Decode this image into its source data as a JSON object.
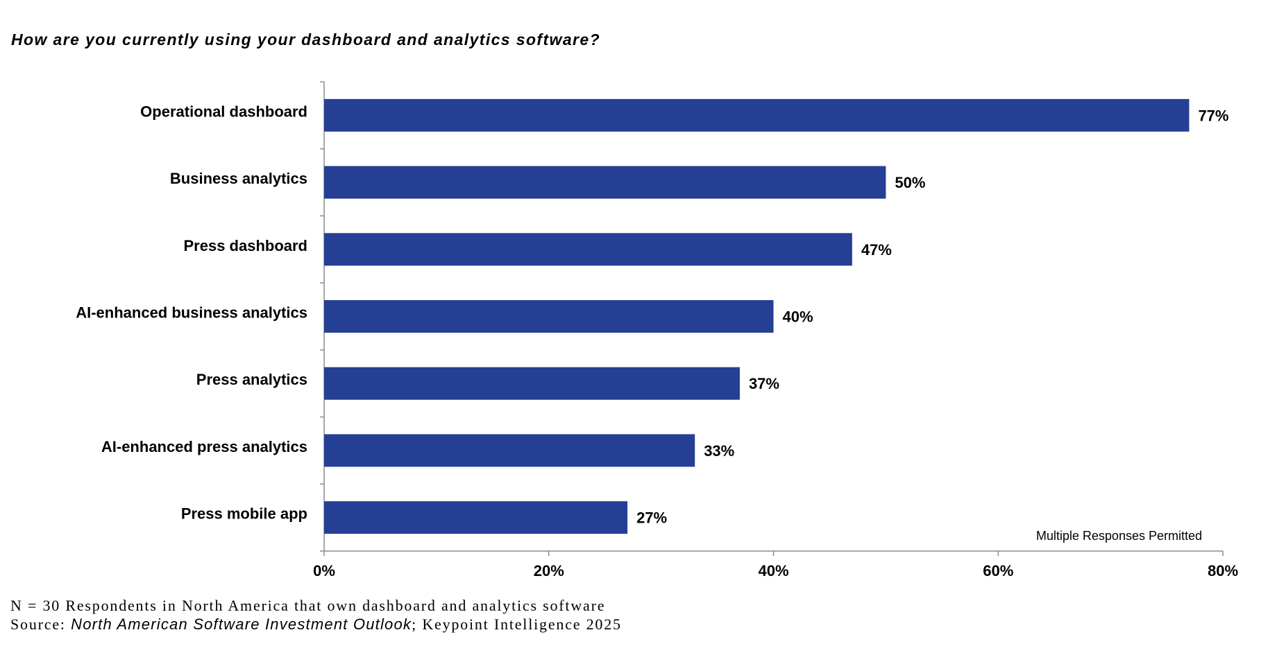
{
  "chart_data": {
    "type": "bar",
    "orientation": "horizontal",
    "title": "How are you currently using your dashboard and analytics software?",
    "categories": [
      "Operational dashboard",
      "Business analytics",
      "Press dashboard",
      "AI-enhanced business analytics",
      "Press analytics",
      "AI-enhanced press analytics",
      "Press mobile app"
    ],
    "values": [
      77,
      50,
      47,
      40,
      37,
      33,
      27
    ],
    "value_labels": [
      "77%",
      "50%",
      "47%",
      "40%",
      "37%",
      "33%",
      "27%"
    ],
    "xlim": [
      0,
      80
    ],
    "xticks": [
      0,
      20,
      40,
      60,
      80
    ],
    "xtick_labels": [
      "0%",
      "20%",
      "40%",
      "60%",
      "80%"
    ],
    "xlabel": "",
    "ylabel": "",
    "grid": false,
    "annotation": "Multiple Responses Permitted",
    "bar_color": "#253F94"
  },
  "footer": {
    "respondents": "N = 30 Respondents in North America that own dashboard and analytics software",
    "source_prefix": "Source: ",
    "publication": "North American Software Investment Outlook",
    "source_suffix": "; Keypoint Intelligence 2025"
  }
}
